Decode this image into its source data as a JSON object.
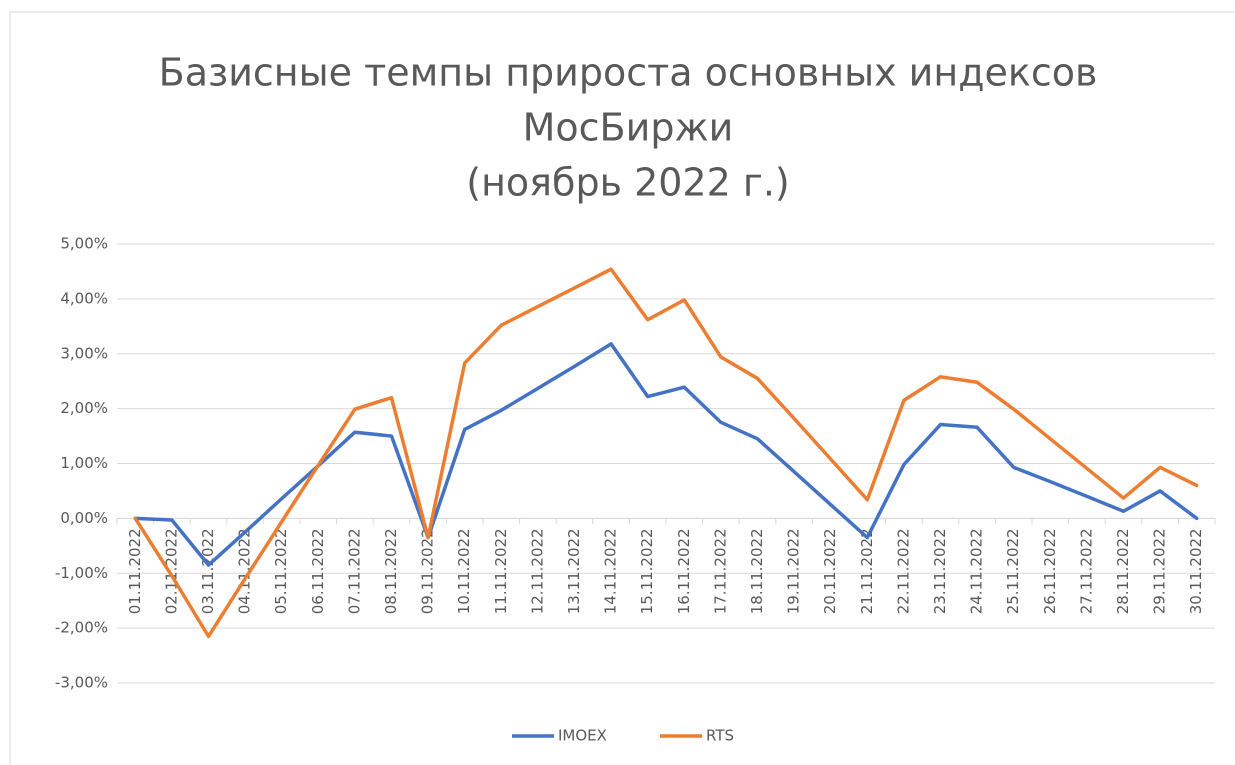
{
  "chart_data": {
    "type": "line",
    "title": [
      "Базисные темпы прироста основных индексов",
      "МосБиржи",
      "(ноябрь 2022 г.)"
    ],
    "categories": [
      "01.11.2022",
      "02.11.2022",
      "03.11.2022",
      "04.11.2022",
      "05.11.2022",
      "06.11.2022",
      "07.11.2022",
      "08.11.2022",
      "09.11.2022",
      "10.11.2022",
      "11.11.2022",
      "12.11.2022",
      "13.11.2022",
      "14.11.2022",
      "15.11.2022",
      "16.11.2022",
      "17.11.2022",
      "18.11.2022",
      "19.11.2022",
      "20.11.2022",
      "21.11.2022",
      "22.11.2022",
      "23.11.2022",
      "24.11.2022",
      "25.11.2022",
      "26.11.2022",
      "27.11.2022",
      "28.11.2022",
      "29.11.2022",
      "30.11.2022"
    ],
    "series": [
      {
        "name": "IMOEX",
        "color": "#4472c4",
        "values": [
          0,
          -0.03,
          -0.85,
          -0.25,
          0.36,
          0.96,
          1.57,
          1.5,
          -0.35,
          1.62,
          1.97,
          2.37,
          2.77,
          3.18,
          2.22,
          2.39,
          1.75,
          1.45,
          0.85,
          0.25,
          -0.35,
          0.98,
          1.71,
          1.66,
          0.93,
          0.67,
          0.4,
          0.13,
          0.5,
          0
        ]
      },
      {
        "name": "RTS",
        "color": "#ed7d31",
        "values": [
          0,
          -1.05,
          -2.15,
          -1.1,
          -0.06,
          0.97,
          1.99,
          2.2,
          -0.35,
          2.83,
          3.52,
          3.86,
          4.2,
          4.54,
          3.62,
          3.98,
          2.94,
          2.55,
          1.82,
          1.08,
          0.34,
          2.15,
          2.58,
          2.48,
          1.99,
          1.45,
          0.91,
          0.37,
          0.93,
          0.6
        ]
      }
    ],
    "ylim": [
      -3,
      5
    ],
    "yticks": [
      {
        "value": -3,
        "label": "-3,00%"
      },
      {
        "value": -2,
        "label": "-2,00%"
      },
      {
        "value": -1,
        "label": "-1,00%"
      },
      {
        "value": 0,
        "label": "0,00%"
      },
      {
        "value": 1,
        "label": "1,00%"
      },
      {
        "value": 2,
        "label": "2,00%"
      },
      {
        "value": 3,
        "label": "3,00%"
      },
      {
        "value": 4,
        "label": "4,00%"
      },
      {
        "value": 5,
        "label": "5,00%"
      }
    ],
    "grid": true,
    "legend": "bottom"
  }
}
